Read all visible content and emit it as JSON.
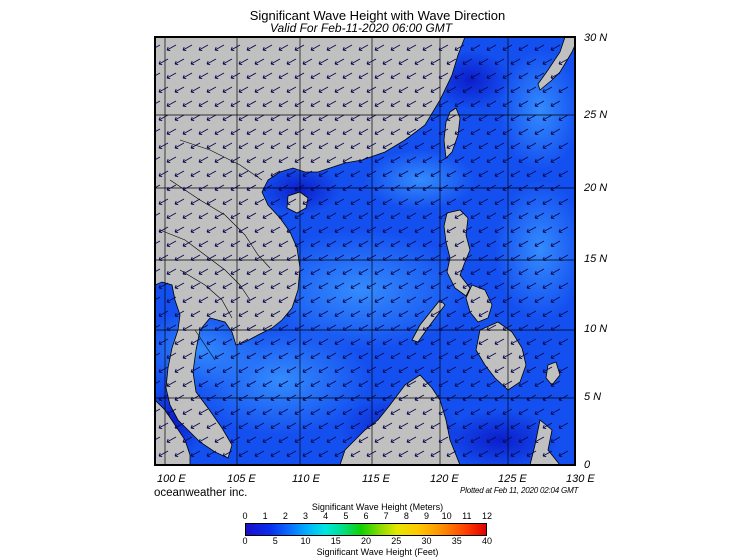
{
  "header": {
    "title": "Significant Wave Height with Wave Direction",
    "subtitle": "Valid For Feb-11-2020 06:00 GMT"
  },
  "map": {
    "lat_labels": [
      "30 N",
      "25 N",
      "20 N",
      "15 N",
      "10 N",
      "5 N",
      "0"
    ],
    "lon_labels": [
      "100 E",
      "105 E",
      "110 E",
      "115 E",
      "120 E",
      "125 E",
      "130 E"
    ],
    "colors": {
      "land": "#c0c0c0",
      "sea_base": "#1450f0",
      "sea_dark": "#0a22d8",
      "sea_light": "#2a82ff",
      "grid": "#000000",
      "arrows": "#0a0a50"
    },
    "wave_direction": "from northeast"
  },
  "footer": {
    "credit": "oceanweather inc.",
    "plotted": "Plotted at Feb 11, 2020 02:04 GMT"
  },
  "colorbar": {
    "meters_title": "Significant Wave Height (Meters)",
    "feet_title": "Significant Wave Height (Feet)",
    "meters_ticks": [
      "0",
      "1",
      "2",
      "3",
      "4",
      "5",
      "6",
      "7",
      "8",
      "9",
      "10",
      "11",
      "12"
    ],
    "feet_ticks": [
      "0",
      "5",
      "10",
      "15",
      "20",
      "25",
      "30",
      "35",
      "40"
    ]
  }
}
